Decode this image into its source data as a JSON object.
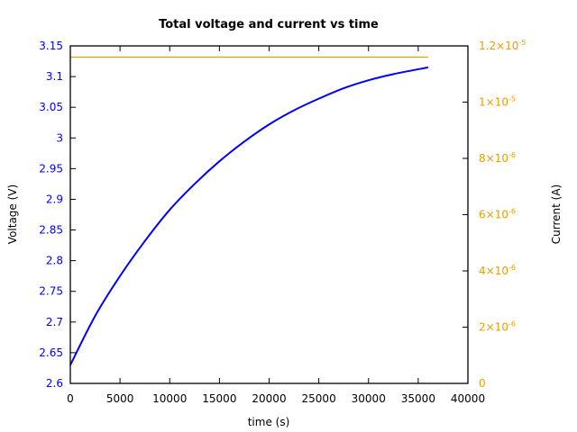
{
  "chart_data": {
    "type": "line",
    "title": "Total voltage and current vs time",
    "xlabel": "time (s)",
    "ylabel": "Voltage (V)",
    "y2label": "Current (A)",
    "xlim": [
      0,
      40000
    ],
    "ylim": [
      2.6,
      3.15
    ],
    "y2lim": [
      0,
      1.2e-05
    ],
    "x_ticks": [
      "0",
      "5000",
      "10000",
      "15000",
      "20000",
      "25000",
      "30000",
      "35000",
      "40000"
    ],
    "y_ticks": [
      "2.6",
      "2.65",
      "2.7",
      "2.75",
      "2.8",
      "2.85",
      "2.9",
      "2.95",
      "3",
      "3.05",
      "3.1",
      "3.15"
    ],
    "y2_ticks": [
      {
        "mant": "0",
        "exp": ""
      },
      {
        "mant": "2×10",
        "exp": "-6"
      },
      {
        "mant": "4×10",
        "exp": "-6"
      },
      {
        "mant": "6×10",
        "exp": "-6"
      },
      {
        "mant": "8×10",
        "exp": "-6"
      },
      {
        "mant": "1×10",
        "exp": "-5"
      },
      {
        "mant": "1.2×10",
        "exp": "-5"
      }
    ],
    "grid": false,
    "legend": null,
    "series": [
      {
        "name": "Voltage",
        "axis": "left",
        "color": "#0000ff",
        "x": [
          0,
          2500,
          5000,
          7500,
          10000,
          12500,
          15000,
          17500,
          20000,
          22500,
          25000,
          27500,
          30000,
          32500,
          36000
        ],
        "values": [
          2.63,
          2.71,
          2.775,
          2.832,
          2.883,
          2.925,
          2.962,
          2.994,
          3.022,
          3.045,
          3.064,
          3.081,
          3.094,
          3.104,
          3.115
        ]
      },
      {
        "name": "Current",
        "axis": "right",
        "color": "#e69f00",
        "x": [
          0,
          36000
        ],
        "values": [
          1.16e-05,
          1.16e-05
        ]
      }
    ]
  },
  "colors": {
    "voltage": "#0000ff",
    "current": "#e69f00",
    "axis": "#000000"
  }
}
